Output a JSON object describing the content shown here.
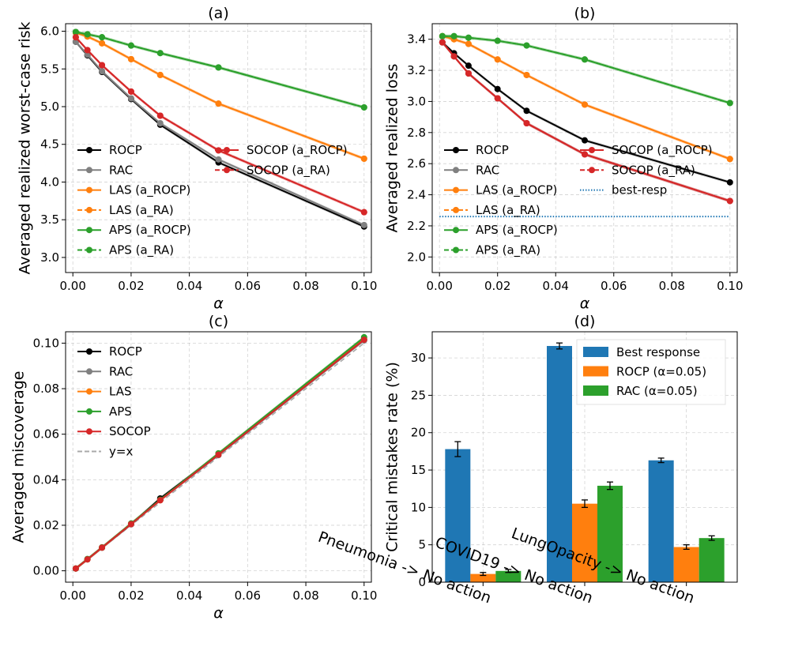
{
  "colors": {
    "black": "#000000",
    "gray": "#808080",
    "orange": "#ff7f0e",
    "green": "#2ca02c",
    "red": "#d62728",
    "blue": "#1f77b4",
    "yx": "#aaaaaa",
    "best_resp": "#1f77b4"
  },
  "chart_data": [
    {
      "id": "a",
      "type": "line",
      "title": "(a)",
      "xlabel": "α",
      "ylabel": "Averaged realized worst-case risk",
      "xlim": [
        -0.0025,
        0.1025
      ],
      "ylim": [
        2.8,
        6.1
      ],
      "xticks": [
        0.0,
        0.02,
        0.04,
        0.06,
        0.08,
        0.1
      ],
      "xtick_labels": [
        "0.00",
        "0.02",
        "0.04",
        "0.06",
        "0.08",
        "0.10"
      ],
      "yticks": [
        3.0,
        3.5,
        4.0,
        4.5,
        5.0,
        5.5,
        6.0
      ],
      "ytick_labels": [
        "3.0",
        "3.5",
        "4.0",
        "4.5",
        "5.0",
        "5.5",
        "6.0"
      ],
      "x": [
        0.001,
        0.005,
        0.01,
        0.02,
        0.03,
        0.05,
        0.1
      ],
      "series": [
        {
          "name": "ROCP",
          "color": "black",
          "dash": false,
          "values": [
            5.86,
            5.68,
            5.46,
            5.1,
            4.76,
            4.26,
            3.41
          ]
        },
        {
          "name": "RAC",
          "color": "gray",
          "dash": false,
          "values": [
            5.86,
            5.69,
            5.47,
            5.11,
            4.78,
            4.3,
            3.43
          ]
        },
        {
          "name": "LAS (a_ROCP)",
          "color": "orange",
          "dash": false,
          "values": [
            5.98,
            5.93,
            5.84,
            5.63,
            5.42,
            5.04,
            4.31
          ]
        },
        {
          "name": "LAS (a_RA)",
          "color": "orange",
          "dash": true,
          "values": [
            5.98,
            5.93,
            5.84,
            5.63,
            5.42,
            5.04,
            4.31
          ]
        },
        {
          "name": "APS (a_ROCP)",
          "color": "green",
          "dash": false,
          "values": [
            5.99,
            5.96,
            5.92,
            5.81,
            5.71,
            5.52,
            4.99
          ]
        },
        {
          "name": "APS (a_RA)",
          "color": "green",
          "dash": true,
          "values": [
            5.99,
            5.96,
            5.92,
            5.81,
            5.71,
            5.52,
            4.99
          ]
        },
        {
          "name": "SOCOP (a_ROCP)",
          "color": "red",
          "dash": false,
          "values": [
            5.92,
            5.75,
            5.55,
            5.2,
            4.88,
            4.42,
            3.6
          ]
        },
        {
          "name": "SOCOP (a_RA)",
          "color": "red",
          "dash": true,
          "values": [
            5.92,
            5.75,
            5.55,
            5.2,
            4.88,
            4.42,
            3.6
          ]
        }
      ],
      "legend": {
        "placement": "lower-left",
        "columns": [
          [
            "ROCP",
            "RAC",
            "LAS (a_ROCP)",
            "LAS (a_RA)",
            "APS (a_ROCP)",
            "APS (a_RA)"
          ],
          [
            "SOCOP (a_ROCP)",
            "SOCOP (a_RA)"
          ]
        ]
      }
    },
    {
      "id": "b",
      "type": "line",
      "title": "(b)",
      "xlabel": "α",
      "ylabel": "Averaged realized loss",
      "xlim": [
        -0.0025,
        0.1025
      ],
      "ylim": [
        1.9,
        3.5
      ],
      "xticks": [
        0.0,
        0.02,
        0.04,
        0.06,
        0.08,
        0.1
      ],
      "xtick_labels": [
        "0.00",
        "0.02",
        "0.04",
        "0.06",
        "0.08",
        "0.10"
      ],
      "yticks": [
        2.0,
        2.2,
        2.4,
        2.6,
        2.8,
        3.0,
        3.2,
        3.4
      ],
      "ytick_labels": [
        "2.0",
        "2.2",
        "2.4",
        "2.6",
        "2.8",
        "3.0",
        "3.2",
        "3.4"
      ],
      "x": [
        0.001,
        0.005,
        0.01,
        0.02,
        0.03,
        0.05,
        0.1
      ],
      "series": [
        {
          "name": "ROCP",
          "color": "black",
          "dash": false,
          "values": [
            3.38,
            3.31,
            3.23,
            3.08,
            2.94,
            2.75,
            2.48
          ]
        },
        {
          "name": "RAC",
          "color": "gray",
          "dash": false,
          "values": [
            3.38,
            3.29,
            3.18,
            3.02,
            2.86,
            2.66,
            2.36
          ]
        },
        {
          "name": "LAS (a_ROCP)",
          "color": "orange",
          "dash": false,
          "values": [
            3.42,
            3.4,
            3.37,
            3.27,
            3.17,
            2.98,
            2.63
          ]
        },
        {
          "name": "LAS (a_RA)",
          "color": "orange",
          "dash": true,
          "values": [
            3.42,
            3.4,
            3.37,
            3.27,
            3.17,
            2.98,
            2.63
          ]
        },
        {
          "name": "APS (a_ROCP)",
          "color": "green",
          "dash": false,
          "values": [
            3.42,
            3.42,
            3.41,
            3.39,
            3.36,
            3.27,
            2.99
          ]
        },
        {
          "name": "APS (a_RA)",
          "color": "green",
          "dash": true,
          "values": [
            3.42,
            3.42,
            3.41,
            3.39,
            3.36,
            3.27,
            2.99
          ]
        },
        {
          "name": "SOCOP (a_ROCP)",
          "color": "red",
          "dash": false,
          "values": [
            3.38,
            3.29,
            3.18,
            3.02,
            2.86,
            2.66,
            2.36
          ]
        },
        {
          "name": "SOCOP (a_RA)",
          "color": "red",
          "dash": true,
          "values": [
            3.38,
            3.29,
            3.18,
            3.02,
            2.86,
            2.66,
            2.36
          ]
        }
      ],
      "hline": {
        "name": "best-resp",
        "value": 2.26,
        "color": "best_resp"
      },
      "legend": {
        "placement": "lower-left",
        "columns": [
          [
            "ROCP",
            "RAC",
            "LAS (a_ROCP)",
            "LAS (a_RA)",
            "APS (a_ROCP)",
            "APS (a_RA)"
          ],
          [
            "SOCOP (a_ROCP)",
            "SOCOP (a_RA)",
            "best-resp"
          ]
        ]
      }
    },
    {
      "id": "c",
      "type": "line",
      "title": "(c)",
      "xlabel": "α",
      "ylabel": "Averaged miscoverage",
      "xlim": [
        -0.0025,
        0.1025
      ],
      "ylim": [
        -0.005,
        0.105
      ],
      "xticks": [
        0.0,
        0.02,
        0.04,
        0.06,
        0.08,
        0.1
      ],
      "xtick_labels": [
        "0.00",
        "0.02",
        "0.04",
        "0.06",
        "0.08",
        "0.10"
      ],
      "yticks": [
        0.0,
        0.02,
        0.04,
        0.06,
        0.08,
        0.1
      ],
      "ytick_labels": [
        "0.00",
        "0.02",
        "0.04",
        "0.06",
        "0.08",
        "0.10"
      ],
      "x": [
        0.001,
        0.005,
        0.01,
        0.02,
        0.03,
        0.05,
        0.1
      ],
      "series": [
        {
          "name": "ROCP",
          "color": "black",
          "dash": false,
          "values": [
            0.001,
            0.005,
            0.0102,
            0.0205,
            0.0318,
            0.0512,
            0.1015
          ]
        },
        {
          "name": "RAC",
          "color": "gray",
          "dash": false,
          "values": [
            0.001,
            0.005,
            0.0101,
            0.0204,
            0.031,
            0.0508,
            0.1012
          ]
        },
        {
          "name": "LAS",
          "color": "orange",
          "dash": false,
          "values": [
            0.001,
            0.005,
            0.0102,
            0.0207,
            0.031,
            0.0515,
            0.1022
          ]
        },
        {
          "name": "APS",
          "color": "green",
          "dash": false,
          "values": [
            0.001,
            0.0052,
            0.0103,
            0.0208,
            0.0312,
            0.0516,
            0.1026
          ]
        },
        {
          "name": "SOCOP",
          "color": "red",
          "dash": false,
          "values": [
            0.001,
            0.005,
            0.0102,
            0.0205,
            0.031,
            0.051,
            0.1015
          ]
        }
      ],
      "ref_line": {
        "name": "y=x",
        "x": [
          0.0,
          0.1
        ],
        "y": [
          0.0,
          0.1
        ],
        "color": "yx"
      },
      "legend": {
        "placement": "upper-left",
        "columns": [
          [
            "ROCP",
            "RAC",
            "LAS",
            "APS",
            "SOCOP",
            "y=x"
          ]
        ]
      }
    },
    {
      "id": "d",
      "type": "bar",
      "title": "(d)",
      "xlabel": "",
      "ylabel": "Critical mistakes rate (%)",
      "ylim": [
        0,
        33.5
      ],
      "yticks": [
        0,
        5,
        10,
        15,
        20,
        25,
        30
      ],
      "ytick_labels": [
        "0",
        "5",
        "10",
        "15",
        "20",
        "25",
        "30"
      ],
      "categories": [
        "Pneumonia -> No action",
        "COVID19 -> No action",
        "LungOpacity -> No action"
      ],
      "series": [
        {
          "name": "Best response",
          "color": "blue",
          "values": [
            17.8,
            31.6,
            16.3
          ],
          "errors": [
            1.0,
            0.4,
            0.3
          ]
        },
        {
          "name": "ROCP (α=0.05)",
          "color": "orange",
          "values": [
            1.1,
            10.5,
            4.7
          ],
          "errors": [
            0.2,
            0.5,
            0.3
          ]
        },
        {
          "name": "RAC (α=0.05)",
          "color": "green",
          "values": [
            1.5,
            12.9,
            5.9
          ],
          "errors": [
            0.2,
            0.5,
            0.3
          ]
        }
      ],
      "legend": {
        "placement": "upper-right"
      }
    }
  ]
}
